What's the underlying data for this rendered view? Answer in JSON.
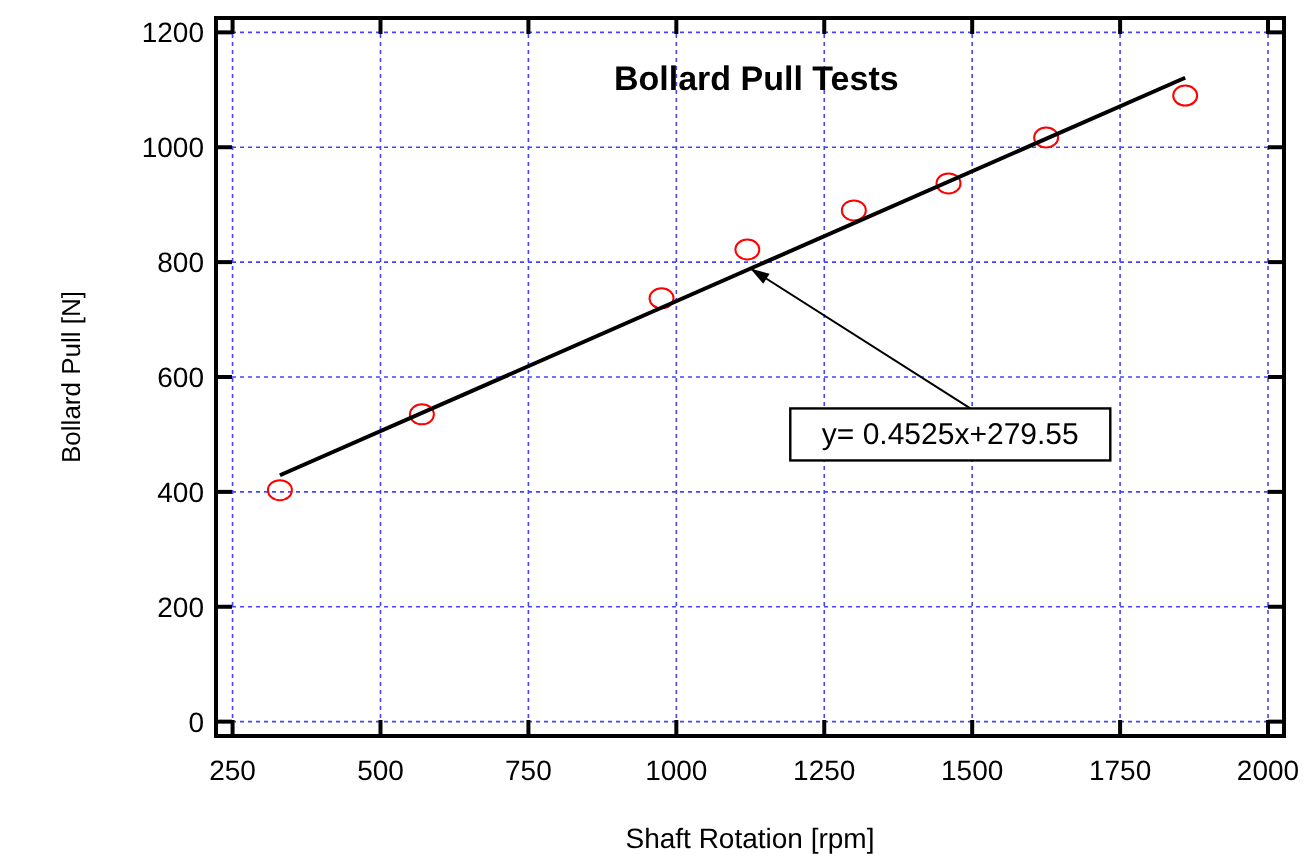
{
  "chart_data": {
    "type": "scatter",
    "title": "Bollard Pull Tests",
    "xlabel": "Shaft Rotation [rpm]",
    "ylabel": "Bollard Pull [N]",
    "xlim": [
      222,
      2027
    ],
    "ylim": [
      -25,
      1225
    ],
    "xticks": [
      250,
      500,
      750,
      1000,
      1250,
      1500,
      1750,
      2000
    ],
    "yticks": [
      0,
      200,
      400,
      600,
      800,
      1000,
      1200
    ],
    "grid": true,
    "marker": "circle",
    "series": [
      {
        "color": "#ff0000",
        "x": [
          330,
          570,
          975,
          1120,
          1300,
          1460,
          1625,
          1860
        ],
        "values": [
          403,
          535,
          737,
          822,
          890,
          937,
          1017,
          1090
        ]
      },
      {
        "type": "line",
        "color": "#000000",
        "marker": "none",
        "x": [
          330,
          1860
        ],
        "values": [
          429,
          1121
        ]
      }
    ],
    "annotations": [
      {
        "text": "y= 0.4525x+279.55",
        "x": 1125,
        "y": 789
      }
    ]
  }
}
